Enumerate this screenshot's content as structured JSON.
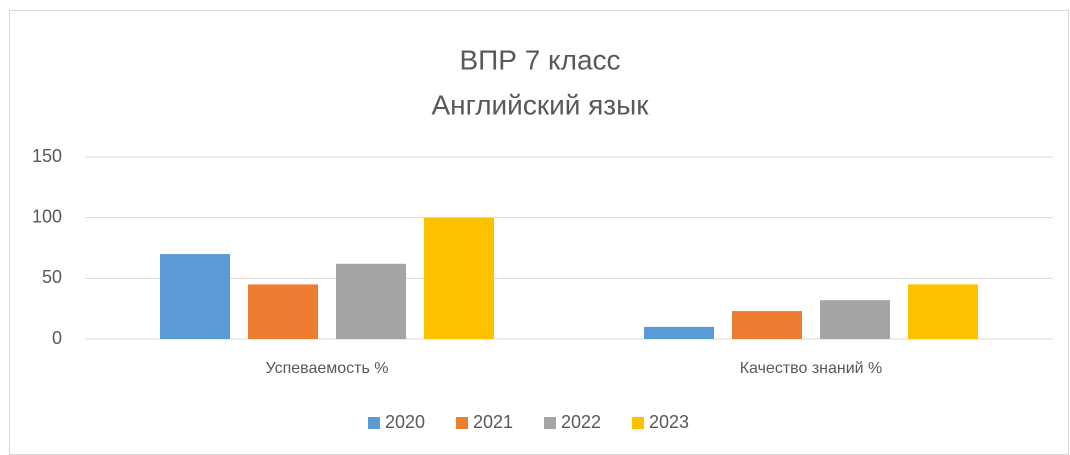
{
  "chart_data": {
    "type": "bar",
    "title": "ВПР 7 класс",
    "subtitle": "Английский язык",
    "categories": [
      "Успеваемость %",
      "Качество знаний %"
    ],
    "series": [
      {
        "name": "2020",
        "color": "#5b9bd5",
        "values": [
          70,
          10
        ]
      },
      {
        "name": "2021",
        "color": "#ed7d31",
        "values": [
          45,
          23
        ]
      },
      {
        "name": "2022",
        "color": "#a5a5a5",
        "values": [
          62,
          32
        ]
      },
      {
        "name": "2023",
        "color": "#ffc000",
        "values": [
          100,
          45
        ]
      }
    ],
    "ylim": [
      0,
      150
    ],
    "yticks": [
      0,
      50,
      100,
      150
    ],
    "grid": true,
    "legend": "bottom"
  }
}
